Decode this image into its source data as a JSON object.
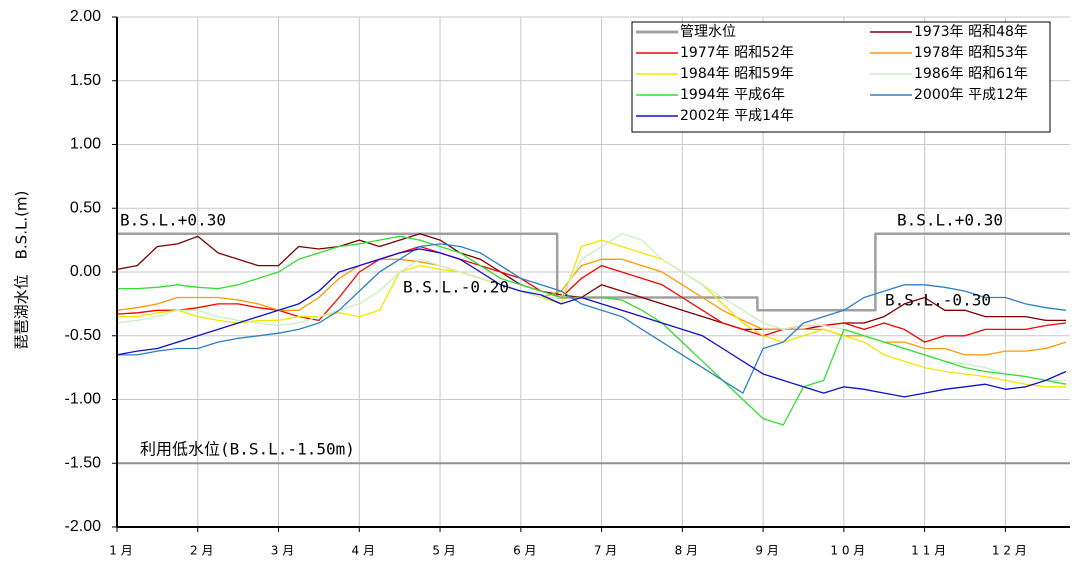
{
  "chart_data": {
    "type": "line",
    "y_label": "琵琶湖水位　B.S.L.(m)",
    "xlim": [
      1,
      12.8
    ],
    "xticks": [
      {
        "value": 1,
        "label": "1 月"
      },
      {
        "value": 2,
        "label": "2 月"
      },
      {
        "value": 3,
        "label": "3 月"
      },
      {
        "value": 4,
        "label": "4 月"
      },
      {
        "value": 5,
        "label": "5 月"
      },
      {
        "value": 6,
        "label": "6 月"
      },
      {
        "value": 7,
        "label": "7 月"
      },
      {
        "value": 8,
        "label": "8 月"
      },
      {
        "value": 9,
        "label": "9 月"
      },
      {
        "value": 10,
        "label": "1 0 月"
      },
      {
        "value": 11,
        "label": "1 1 月"
      },
      {
        "value": 12,
        "label": "1 2 月"
      }
    ],
    "ylim": [
      -2,
      2
    ],
    "yticks": [
      {
        "value": -2,
        "label": "-2.00"
      },
      {
        "value": -1.5,
        "label": "-1.50"
      },
      {
        "value": -1,
        "label": "-1.00"
      },
      {
        "value": -0.5,
        "label": "-0.50"
      },
      {
        "value": 0,
        "label": "0.00"
      },
      {
        "value": 0.5,
        "label": "0.50"
      },
      {
        "value": 1,
        "label": "1.00"
      },
      {
        "value": 1.5,
        "label": "1.50"
      },
      {
        "value": 2,
        "label": "2.00"
      }
    ],
    "grid": true,
    "legend": "upper right",
    "reference_line": -1.5,
    "annotations": [
      "B.S.L.+0.30",
      "B.S.L.-0.20",
      "B.S.L.+0.30",
      "B.S.L.-0.30",
      "利用低水位(B.S.L.-1.50m)"
    ],
    "x": [
      1,
      1.25,
      1.5,
      1.75,
      2,
      2.25,
      2.5,
      2.75,
      3,
      3.25,
      3.5,
      3.75,
      4,
      4.25,
      4.5,
      4.75,
      5,
      5.25,
      5.5,
      5.75,
      6,
      6.25,
      6.5,
      6.75,
      7,
      7.25,
      7.5,
      7.75,
      8,
      8.25,
      8.5,
      8.75,
      9,
      9.25,
      9.5,
      9.75,
      10,
      10.25,
      10.5,
      10.75,
      11,
      11.25,
      11.5,
      11.75,
      12,
      12.25,
      12.5,
      12.75
    ],
    "series": [
      {
        "name": "管理水位",
        "color": "#a0a0a0",
        "x": [
          1,
          6.45,
          6.45,
          8.93,
          8.93,
          10.39,
          10.39,
          12.8
        ],
        "values": [
          0.3,
          0.3,
          -0.2,
          -0.2,
          -0.3,
          -0.3,
          0.3,
          0.3
        ]
      },
      {
        "name": "1973年 昭和48年",
        "color": "#800000",
        "values": [
          0.02,
          0.05,
          0.2,
          0.22,
          0.28,
          0.15,
          0.1,
          0.05,
          0.05,
          0.2,
          0.18,
          0.2,
          0.25,
          0.2,
          0.25,
          0.3,
          0.25,
          0.15,
          0.1,
          0.0,
          -0.1,
          -0.15,
          -0.18,
          -0.2,
          -0.1,
          -0.15,
          -0.2,
          -0.25,
          -0.3,
          -0.35,
          -0.4,
          -0.45,
          -0.45,
          -0.45,
          -0.45,
          -0.42,
          -0.4,
          -0.4,
          -0.35,
          -0.25,
          -0.2,
          -0.3,
          -0.3,
          -0.35,
          -0.35,
          -0.35,
          -0.38,
          -0.38
        ]
      },
      {
        "name": "1977年 昭和52年",
        "color": "#ff0000",
        "values": [
          -0.33,
          -0.32,
          -0.3,
          -0.3,
          -0.28,
          -0.25,
          -0.25,
          -0.28,
          -0.3,
          -0.35,
          -0.38,
          -0.2,
          0,
          0.1,
          0.15,
          0.2,
          0.15,
          0.1,
          0.05,
          0,
          -0.05,
          -0.15,
          -0.2,
          -0.05,
          0.05,
          0,
          -0.05,
          -0.1,
          -0.2,
          -0.3,
          -0.4,
          -0.45,
          -0.5,
          -0.45,
          -0.42,
          -0.42,
          -0.4,
          -0.45,
          -0.4,
          -0.45,
          -0.55,
          -0.5,
          -0.5,
          -0.45,
          -0.45,
          -0.45,
          -0.42,
          -0.4
        ]
      },
      {
        "name": "1978年 昭和53年",
        "color": "#ff9900",
        "values": [
          -0.3,
          -0.28,
          -0.25,
          -0.2,
          -0.2,
          -0.2,
          -0.22,
          -0.25,
          -0.3,
          -0.3,
          -0.2,
          -0.05,
          0.05,
          0.1,
          0.1,
          0.08,
          0.05,
          0.0,
          -0.05,
          -0.1,
          -0.15,
          -0.2,
          -0.15,
          0.05,
          0.1,
          0.1,
          0.05,
          0.0,
          -0.1,
          -0.2,
          -0.3,
          -0.38,
          -0.45,
          -0.45,
          -0.45,
          -0.45,
          -0.5,
          -0.5,
          -0.55,
          -0.55,
          -0.6,
          -0.6,
          -0.65,
          -0.65,
          -0.62,
          -0.62,
          -0.6,
          -0.55
        ]
      },
      {
        "name": "1984年 昭和59年",
        "color": "#f2e600",
        "values": [
          -0.35,
          -0.35,
          -0.32,
          -0.3,
          -0.35,
          -0.38,
          -0.4,
          -0.38,
          -0.38,
          -0.35,
          -0.35,
          -0.32,
          -0.35,
          -0.3,
          0.0,
          0.05,
          0.02,
          0.0,
          -0.05,
          -0.1,
          -0.15,
          -0.2,
          -0.25,
          0.2,
          0.25,
          0.2,
          0.15,
          0.1,
          0.0,
          -0.1,
          -0.25,
          -0.4,
          -0.5,
          -0.55,
          -0.5,
          -0.45,
          -0.5,
          -0.55,
          -0.65,
          -0.7,
          -0.75,
          -0.78,
          -0.8,
          -0.82,
          -0.85,
          -0.88,
          -0.9,
          -0.9
        ]
      },
      {
        "name": "1986年 昭和61年",
        "color": "#c8f0c0",
        "values": [
          -0.4,
          -0.38,
          -0.35,
          -0.3,
          -0.3,
          -0.35,
          -0.38,
          -0.4,
          -0.42,
          -0.4,
          -0.35,
          -0.3,
          -0.25,
          -0.15,
          0.0,
          0.1,
          0.05,
          0.0,
          -0.05,
          -0.1,
          -0.15,
          -0.2,
          -0.2,
          0.1,
          0.2,
          0.3,
          0.25,
          0.1,
          0.0,
          -0.1,
          -0.2,
          -0.3,
          -0.4,
          -0.45,
          -0.42,
          -0.42,
          -0.45,
          -0.5,
          -0.55,
          -0.6,
          -0.65,
          -0.7,
          -0.72,
          -0.75,
          -0.8,
          -0.82,
          -0.85,
          -0.85
        ]
      },
      {
        "name": "1994年 平成6年",
        "color": "#33dd33",
        "values": [
          -0.13,
          -0.13,
          -0.12,
          -0.1,
          -0.12,
          -0.13,
          -0.1,
          -0.05,
          0.0,
          0.1,
          0.15,
          0.2,
          0.22,
          0.25,
          0.28,
          0.25,
          0.2,
          0.15,
          0.05,
          -0.05,
          -0.1,
          -0.15,
          -0.2,
          -0.2,
          -0.2,
          -0.22,
          -0.3,
          -0.4,
          -0.55,
          -0.7,
          -0.85,
          -1.0,
          -1.15,
          -1.2,
          -0.9,
          -0.85,
          -0.45,
          -0.5,
          -0.55,
          -0.6,
          -0.65,
          -0.7,
          -0.75,
          -0.78,
          -0.8,
          -0.82,
          -0.85,
          -0.88
        ]
      },
      {
        "name": "2000年 平成12年",
        "color": "#2f80c0",
        "values": [
          -0.65,
          -0.65,
          -0.62,
          -0.6,
          -0.6,
          -0.55,
          -0.52,
          -0.5,
          -0.48,
          -0.45,
          -0.4,
          -0.3,
          -0.15,
          0.0,
          0.1,
          0.2,
          0.22,
          0.2,
          0.15,
          0.05,
          -0.05,
          -0.1,
          -0.15,
          -0.25,
          -0.3,
          -0.35,
          -0.45,
          -0.55,
          -0.65,
          -0.75,
          -0.85,
          -0.95,
          -0.6,
          -0.55,
          -0.4,
          -0.35,
          -0.3,
          -0.2,
          -0.15,
          -0.1,
          -0.1,
          -0.12,
          -0.15,
          -0.2,
          -0.2,
          -0.25,
          -0.28,
          -0.3
        ]
      },
      {
        "name": "2002年 平成14年",
        "color": "#1010d0",
        "values": [
          -0.65,
          -0.62,
          -0.6,
          -0.55,
          -0.5,
          -0.45,
          -0.4,
          -0.35,
          -0.3,
          -0.25,
          -0.15,
          0.0,
          0.05,
          0.1,
          0.15,
          0.18,
          0.15,
          0.1,
          0.0,
          -0.1,
          -0.15,
          -0.18,
          -0.25,
          -0.2,
          -0.25,
          -0.3,
          -0.35,
          -0.4,
          -0.45,
          -0.5,
          -0.6,
          -0.7,
          -0.8,
          -0.85,
          -0.9,
          -0.95,
          -0.9,
          -0.92,
          -0.95,
          -0.98,
          -0.95,
          -0.92,
          -0.9,
          -0.88,
          -0.92,
          -0.9,
          -0.85,
          -0.78
        ]
      }
    ]
  }
}
